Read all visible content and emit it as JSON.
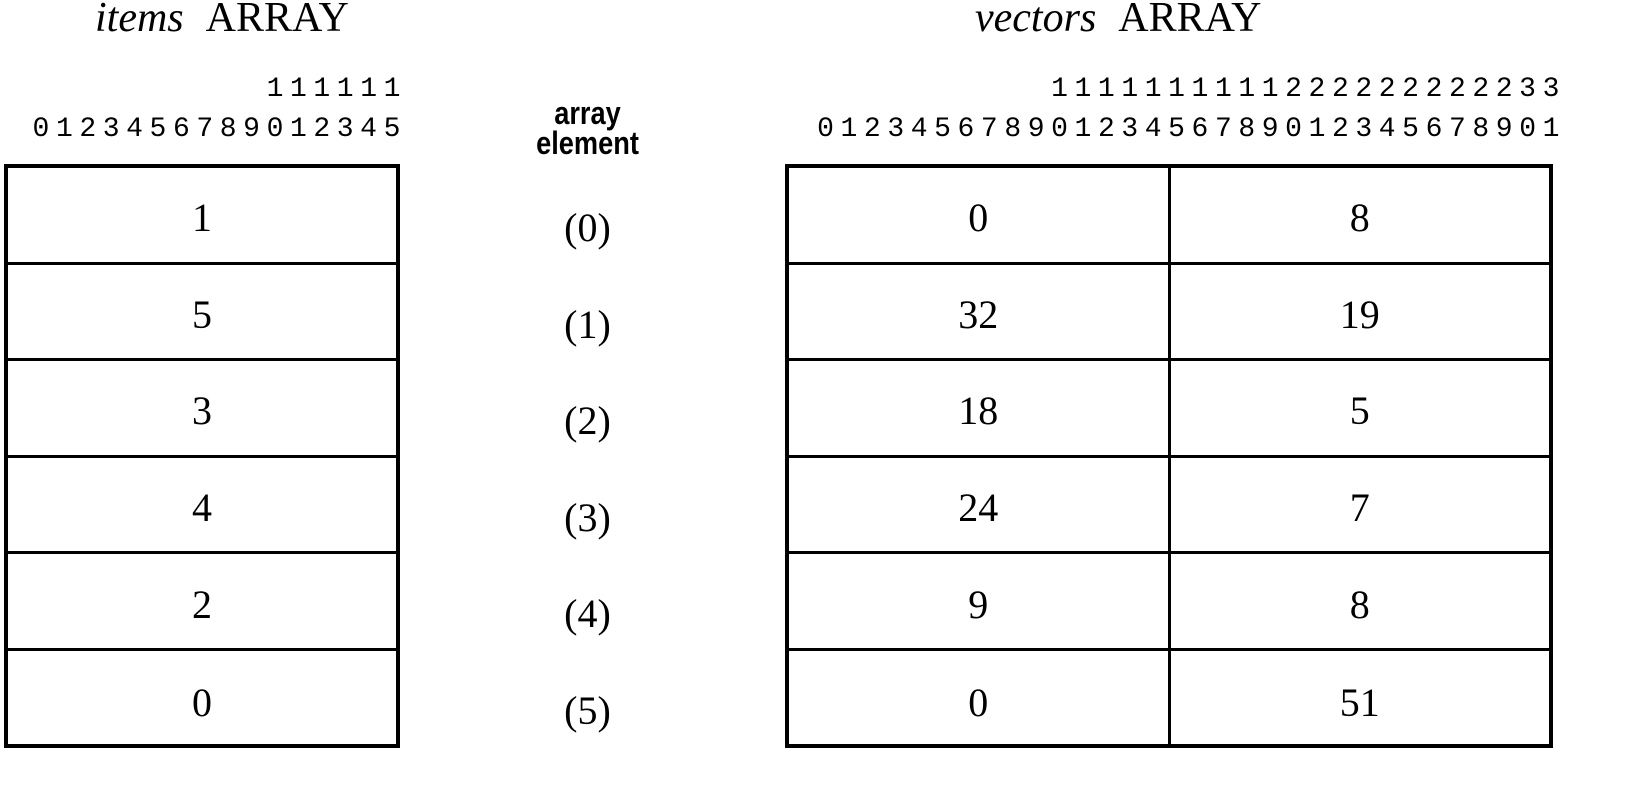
{
  "items": {
    "name": "items",
    "type_label": "ARRAY",
    "ruler_tens": "111111",
    "ruler_units": "0123456789012345",
    "values": [
      "1",
      "5",
      "3",
      "4",
      "2",
      "0"
    ]
  },
  "middle": {
    "label_line1": "array",
    "label_line2": "element",
    "indices": [
      "(0)",
      "(1)",
      "(2)",
      "(3)",
      "(4)",
      "(5)"
    ]
  },
  "vectors": {
    "name": "vectors",
    "type_label": "ARRAY",
    "ruler_tens": "1111111111222222222233",
    "ruler_units": "01234567890123456789012345678901",
    "rows": [
      [
        "0",
        "8"
      ],
      [
        "32",
        "19"
      ],
      [
        "18",
        "5"
      ],
      [
        "24",
        "7"
      ],
      [
        "9",
        "8"
      ],
      [
        "0",
        "51"
      ]
    ]
  }
}
